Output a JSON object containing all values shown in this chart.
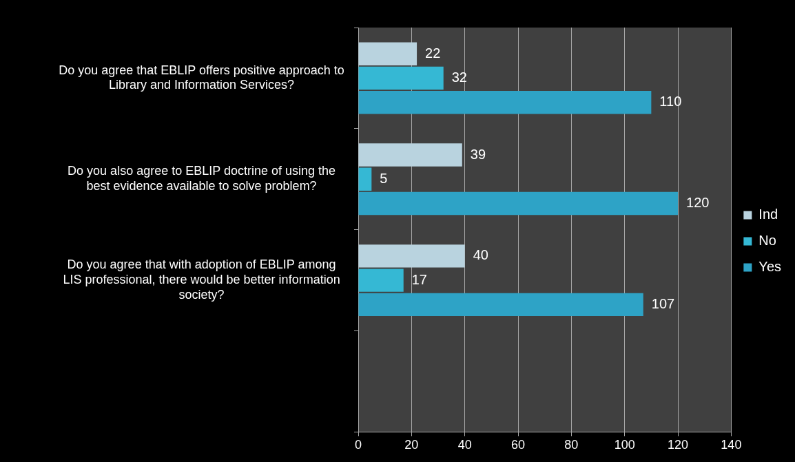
{
  "chart_data": {
    "type": "bar",
    "orientation": "horizontal",
    "categories": [
      "Do you agree that EBLIP offers positive approach to Library and Information Services?",
      "Do you also agree to EBLIP doctrine of using the best evidence available to solve problem?",
      "Do you agree that with adoption of EBLIP among LIS professional, there would be better information society?",
      null
    ],
    "series": [
      {
        "name": "Ind",
        "color": "#b9d3df",
        "values": [
          22,
          39,
          40,
          null
        ]
      },
      {
        "name": "No",
        "color": "#35b8d4",
        "values": [
          32,
          5,
          17,
          null
        ]
      },
      {
        "name": "Yes",
        "color": "#2ea3c6",
        "values": [
          110,
          120,
          107,
          null
        ]
      }
    ],
    "xlim": [
      0,
      140
    ],
    "xticks": [
      0,
      20,
      40,
      60,
      80,
      100,
      120,
      140
    ],
    "grid": "x",
    "legend": "right",
    "data_labels": true
  }
}
